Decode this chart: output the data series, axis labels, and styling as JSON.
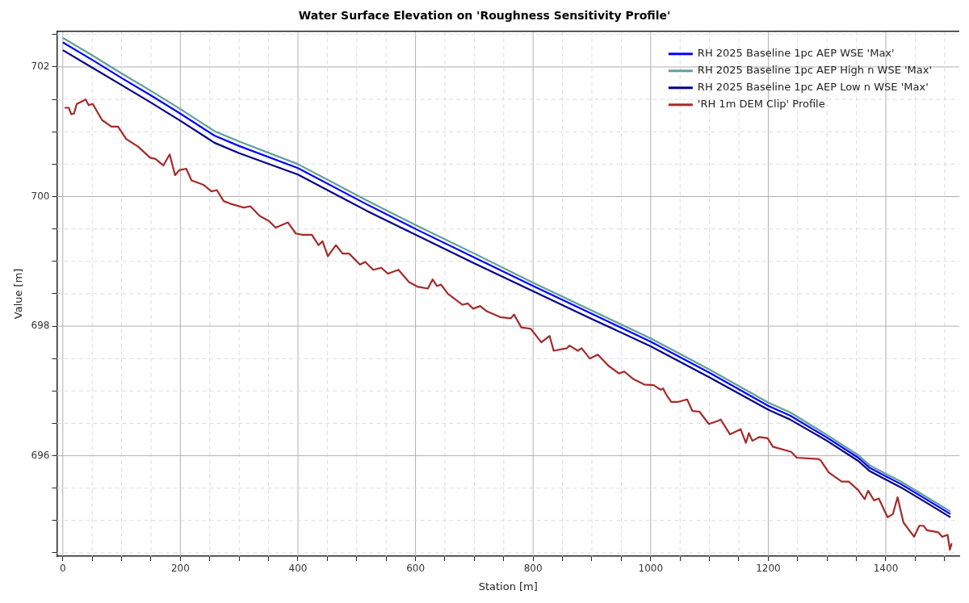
{
  "chart_data": {
    "type": "line",
    "title": "Water Surface Elevation on 'Roughness Sensitivity Profile'",
    "xlabel": "Station [m]",
    "ylabel": "Value [m]",
    "xlim": [
      -10,
      1525
    ],
    "ylim": [
      694.45,
      702.55
    ],
    "xticks": [
      0,
      {
        "value": 50,
        "label": null
      },
      {
        "value": 100,
        "label": null
      },
      {
        "value": 150,
        "label": null
      },
      200,
      {
        "value": 250,
        "label": null
      },
      {
        "value": 300,
        "label": null
      },
      {
        "value": 350,
        "label": null
      },
      400,
      {
        "value": 450,
        "label": null
      },
      {
        "value": 500,
        "label": null
      },
      {
        "value": 550,
        "label": null
      },
      600,
      {
        "value": 650,
        "label": null
      },
      {
        "value": 700,
        "label": null
      },
      {
        "value": 750,
        "label": null
      },
      800,
      {
        "value": 850,
        "label": null
      },
      {
        "value": 900,
        "label": null
      },
      {
        "value": 950,
        "label": null
      },
      1000,
      {
        "value": 1050,
        "label": null
      },
      {
        "value": 1100,
        "label": null
      },
      {
        "value": 1150,
        "label": null
      },
      1200,
      {
        "value": 1250,
        "label": null
      },
      {
        "value": 1300,
        "label": null
      },
      {
        "value": 1350,
        "label": null
      },
      1400,
      {
        "value": 1450,
        "label": null
      },
      {
        "value": 1500,
        "label": null
      }
    ],
    "yticks": [
      {
        "value": 694.5,
        "label": null
      },
      {
        "value": 695,
        "label": null
      },
      {
        "value": 695.5,
        "label": null
      },
      696,
      {
        "value": 696.5,
        "label": null
      },
      {
        "value": 697,
        "label": null
      },
      {
        "value": 697.5,
        "label": null
      },
      698,
      {
        "value": 698.5,
        "label": null
      },
      {
        "value": 699,
        "label": null
      },
      {
        "value": 699.5,
        "label": null
      },
      700,
      {
        "value": 700.5,
        "label": null
      },
      {
        "value": 701,
        "label": null
      },
      {
        "value": 701.5,
        "label": null
      },
      702,
      {
        "value": 702.5,
        "label": null
      }
    ],
    "grid": true,
    "legend": "top right",
    "marker": "none",
    "line_style": "solid",
    "series": [
      {
        "name": "RH 2025 Baseline 1pc AEP WSE 'Max'",
        "color": "#0000ff",
        "x": [
          0,
          50,
          100,
          150,
          200,
          258,
          300,
          400,
          517,
          600,
          700,
          800,
          900,
          1000,
          1100,
          1200,
          1237,
          1300,
          1353,
          1373,
          1426,
          1470,
          1510
        ],
        "values": [
          702.38,
          702.11,
          701.83,
          701.56,
          701.28,
          700.94,
          700.78,
          700.44,
          699.88,
          699.5,
          699.06,
          698.62,
          698.19,
          697.76,
          697.28,
          696.77,
          696.62,
          696.28,
          695.97,
          695.81,
          695.56,
          695.32,
          695.1
        ]
      },
      {
        "name": "RH 2025 Baseline 1pc AEP High n WSE 'Max'",
        "color": "#5f9ea0",
        "x": [
          0,
          50,
          100,
          150,
          200,
          258,
          300,
          400,
          517,
          600,
          700,
          800,
          900,
          1000,
          1100,
          1200,
          1237,
          1300,
          1353,
          1373,
          1426,
          1470,
          1510
        ],
        "values": [
          702.45,
          702.18,
          701.9,
          701.63,
          701.35,
          701.01,
          700.85,
          700.5,
          699.94,
          699.56,
          699.12,
          698.67,
          698.24,
          697.81,
          697.33,
          696.82,
          696.67,
          696.32,
          696.01,
          695.85,
          695.6,
          695.36,
          695.14
        ]
      },
      {
        "name": "RH 2025 Baseline 1pc AEP Low n WSE 'Max'",
        "color": "#00008b",
        "x": [
          0,
          50,
          100,
          150,
          200,
          258,
          300,
          400,
          517,
          600,
          700,
          800,
          900,
          1000,
          1100,
          1200,
          1237,
          1300,
          1353,
          1373,
          1426,
          1470,
          1510
        ],
        "values": [
          702.26,
          701.99,
          701.72,
          701.45,
          701.17,
          700.83,
          700.67,
          700.34,
          699.78,
          699.41,
          698.97,
          698.54,
          698.11,
          697.69,
          697.21,
          696.71,
          696.56,
          696.23,
          695.92,
          695.76,
          695.51,
          695.27,
          695.05
        ]
      },
      {
        "name": "'RH 1m DEM Clip' Profile",
        "color": "#a52a2a",
        "x": [
          3,
          10,
          14.5,
          19,
          23.7,
          35,
          38.6,
          44,
          50.9,
          66.8,
          82.7,
          94,
          107.7,
          128,
          148.6,
          157.7,
          171,
          181.8,
          190.9,
          198.6,
          210,
          219,
          239.5,
          253,
          262,
          273.7,
          285,
          307.8,
          319,
          335,
          351,
          362,
          383,
          396.4,
          407.7,
          423.6,
          435,
          441.8,
          450.9,
          464.6,
          476,
          487,
          505.4,
          514.5,
          528,
          541.8,
          553,
          571,
          589,
          603,
          621,
          629,
          636.5,
          643.5,
          655,
          680,
          689,
          698,
          710,
          721,
          744,
          762,
          767.5,
          780,
          796,
          814,
          828,
          835,
          857.5,
          862,
          876,
          882.5,
          896.4,
          910,
          928,
          946,
          955,
          971,
          989,
          1005,
          1017,
          1021,
          1026,
          1035,
          1046,
          1062,
          1071,
          1083,
          1099,
          1115,
          1119,
          1135,
          1153,
          1162,
          1167,
          1173,
          1185,
          1199,
          1207.8,
          1239,
          1248.5,
          1285,
          1289,
          1303,
          1325,
          1337,
          1353,
          1364,
          1370,
          1380,
          1388,
          1403,
          1412,
          1420,
          1430,
          1448,
          1457,
          1464,
          1470,
          1489,
          1496,
          1505,
          1509,
          1512
        ],
        "values": [
          701.37,
          701.37,
          701.27,
          701.28,
          701.43,
          701.48,
          701.5,
          701.41,
          701.43,
          701.18,
          701.08,
          701.08,
          700.89,
          700.77,
          700.6,
          700.58,
          700.48,
          700.65,
          700.33,
          700.41,
          700.43,
          700.25,
          700.18,
          700.08,
          700.1,
          699.93,
          699.89,
          699.83,
          699.85,
          699.7,
          699.62,
          699.52,
          699.6,
          699.43,
          699.41,
          699.41,
          699.25,
          699.31,
          699.08,
          699.25,
          699.12,
          699.12,
          698.95,
          698.99,
          698.87,
          698.9,
          698.81,
          698.87,
          698.68,
          698.61,
          698.58,
          698.72,
          698.62,
          698.64,
          698.5,
          698.33,
          698.35,
          698.27,
          698.31,
          698.23,
          698.14,
          698.12,
          698.18,
          697.98,
          697.96,
          697.75,
          697.85,
          697.62,
          697.66,
          697.7,
          697.62,
          697.66,
          697.5,
          697.56,
          697.39,
          697.27,
          697.3,
          697.18,
          697.1,
          697.09,
          697.02,
          697.04,
          696.95,
          696.83,
          696.83,
          696.87,
          696.69,
          696.68,
          696.49,
          696.54,
          696.56,
          696.33,
          696.41,
          696.2,
          696.35,
          696.23,
          696.29,
          696.27,
          696.14,
          696.06,
          695.97,
          695.95,
          695.93,
          695.74,
          695.6,
          695.6,
          695.47,
          695.33,
          695.46,
          695.31,
          695.34,
          695.05,
          695.1,
          695.36,
          694.97,
          694.75,
          694.92,
          694.92,
          694.85,
          694.82,
          694.75,
          694.78,
          694.55,
          694.65
        ]
      }
    ]
  }
}
